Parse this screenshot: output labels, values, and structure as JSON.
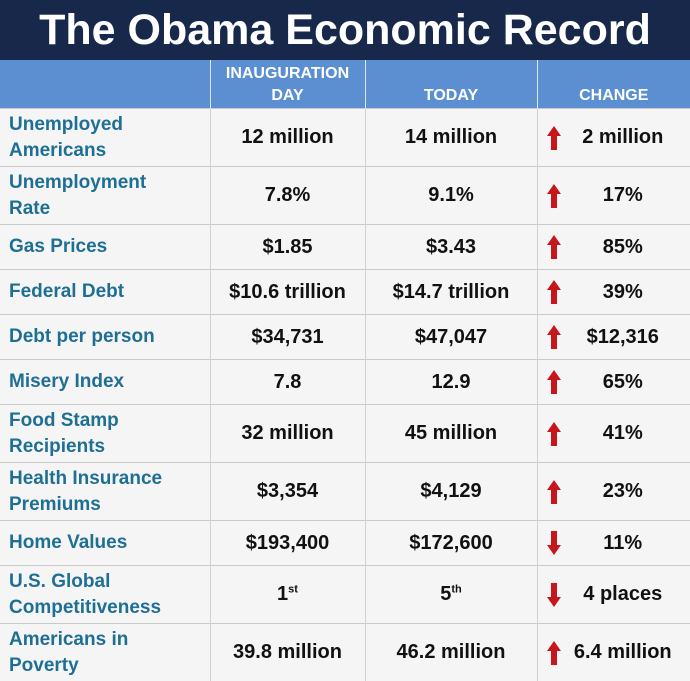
{
  "title": "The Obama Economic Record",
  "headers": {
    "col1_line1": "INAUGURATION",
    "col1_line2": "DAY",
    "col2": "TODAY",
    "col3": "CHANGE"
  },
  "colors": {
    "title_bg": "#17284a",
    "header_bg": "#5b8fd1",
    "label_text": "#1f6f95",
    "arrow": "#c4161c"
  },
  "rows": [
    {
      "label1": "Unemployed",
      "label2": "Americans",
      "inauguration": "12 million",
      "today": "14 million",
      "change": "2 million",
      "direction": "up"
    },
    {
      "label1": "Unemployment",
      "label2": "Rate",
      "inauguration": "7.8%",
      "today": "9.1%",
      "change": "17%",
      "direction": "up"
    },
    {
      "label1": "Gas Prices",
      "label2": "",
      "inauguration": "$1.85",
      "today": "$3.43",
      "change": "85%",
      "direction": "up"
    },
    {
      "label1": "Federal Debt",
      "label2": "",
      "inauguration": "$10.6 trillion",
      "today": "$14.7 trillion",
      "change": "39%",
      "direction": "up"
    },
    {
      "label1": "Debt per person",
      "label2": "",
      "inauguration": "$34,731",
      "today": "$47,047",
      "change": "$12,316",
      "direction": "up"
    },
    {
      "label1": "Misery Index",
      "label2": "",
      "inauguration": "7.8",
      "today": "12.9",
      "change": "65%",
      "direction": "up"
    },
    {
      "label1": "Food Stamp",
      "label2": "Recipients",
      "inauguration": "32 million",
      "today": "45 million",
      "change": "41%",
      "direction": "up"
    },
    {
      "label1": "Health Insurance",
      "label2": "Premiums",
      "inauguration": "$3,354",
      "today": "$4,129",
      "change": "23%",
      "direction": "up"
    },
    {
      "label1": "Home Values",
      "label2": "",
      "inauguration": "$193,400",
      "today": "$172,600",
      "change": "11%",
      "direction": "down"
    },
    {
      "label1": "U.S. Global",
      "label2": "Competitiveness",
      "inauguration": "1",
      "inauguration_sup": "st",
      "today": "5",
      "today_sup": "th",
      "change": "4 places",
      "direction": "down"
    },
    {
      "label1": "Americans in",
      "label2": "Poverty",
      "inauguration": "39.8 million",
      "today": "46.2 million",
      "change": "6.4 million",
      "direction": "up"
    }
  ]
}
